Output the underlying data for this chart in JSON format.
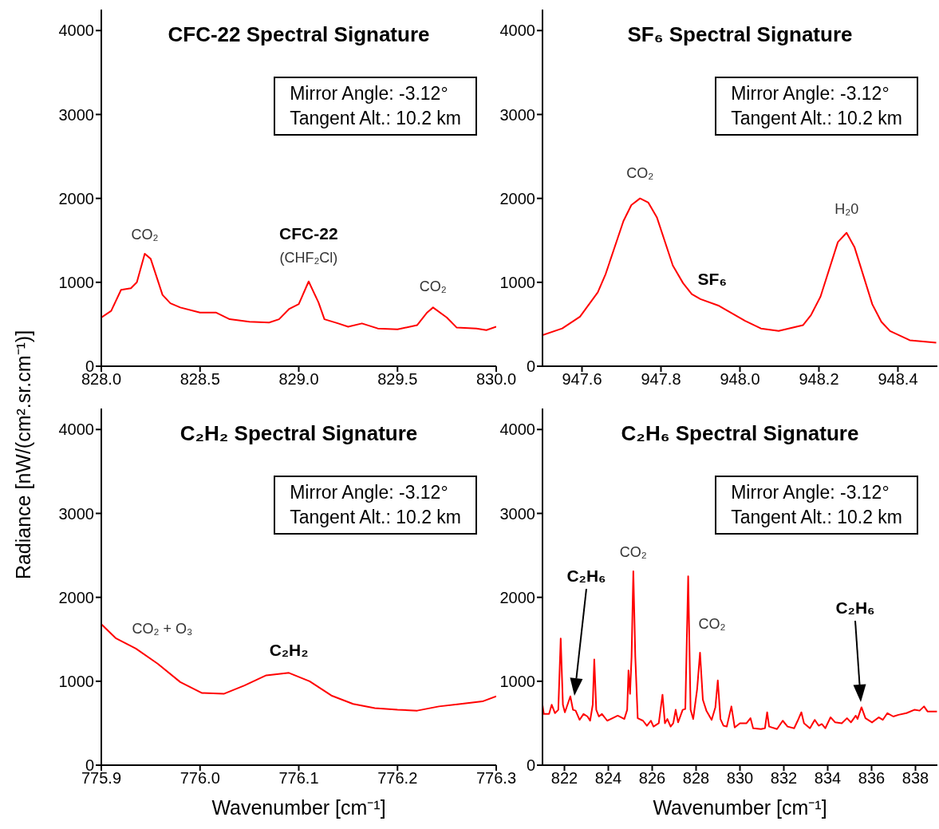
{
  "chart_data": [
    {
      "type": "line",
      "title": "CFC-22 Spectral Signature",
      "ylabel": "Radiance [nW/(cm².sr.cm⁻¹)]",
      "color": "#ff0000",
      "xlim": [
        828,
        830
      ],
      "xticks": [
        {
          "value": 828,
          "label": "828.0"
        },
        {
          "value": 828.5,
          "label": "828.5"
        },
        {
          "value": 829,
          "label": "829.0"
        },
        {
          "value": 829.5,
          "label": "829.5"
        },
        {
          "value": 830,
          "label": "830.0"
        }
      ],
      "ylim": [
        0,
        4250
      ],
      "yticks": [
        0,
        1000,
        2000,
        3000,
        4000
      ],
      "x": [
        828.0,
        828.05,
        828.1,
        828.15,
        828.18,
        828.22,
        828.25,
        828.31,
        828.35,
        828.4,
        828.5,
        828.58,
        828.65,
        828.75,
        828.85,
        828.9,
        828.95,
        829.0,
        829.05,
        829.1,
        829.13,
        829.2,
        829.25,
        829.32,
        829.4,
        829.5,
        829.6,
        829.65,
        829.68,
        829.75,
        829.8,
        829.9,
        829.95,
        830.0
      ],
      "values": [
        580,
        660,
        910,
        930,
        1000,
        1340,
        1280,
        850,
        750,
        700,
        640,
        640,
        560,
        530,
        520,
        560,
        680,
        740,
        1010,
        760,
        560,
        510,
        470,
        510,
        450,
        440,
        490,
        640,
        700,
        580,
        460,
        450,
        430,
        470
      ],
      "annotations": [
        "Mirror Angle: -3.12°",
        "Tangent Alt.: 10.2 km",
        {
          "text": "CO₂",
          "x": 828.22,
          "y": 1340
        },
        {
          "text": "CFC-22",
          "x": 829.05,
          "y": 1010
        },
        {
          "text": "(CHF₂Cl)",
          "x": 829.05,
          "y": 1010
        },
        {
          "text": "CO₂",
          "x": 829.68,
          "y": 700
        }
      ]
    },
    {
      "type": "line",
      "title": "SF₆ Spectral Signature",
      "color": "#ff0000",
      "xlim": [
        947.5,
        948.5
      ],
      "xticks": [
        947.6,
        947.8,
        {
          "value": 948,
          "label": "948.0"
        },
        948.2,
        948.4
      ],
      "ylim": [
        0,
        4250
      ],
      "yticks": [
        0,
        1000,
        2000,
        3000,
        4000
      ],
      "x": [
        947.5,
        947.55,
        947.595,
        947.64,
        947.66,
        947.705,
        947.725,
        947.747,
        947.768,
        947.79,
        947.83,
        947.856,
        947.878,
        947.9,
        947.947,
        948.013,
        948.053,
        948.098,
        948.16,
        948.18,
        948.204,
        948.248,
        948.27,
        948.29,
        948.335,
        948.358,
        948.38,
        948.43,
        948.497
      ],
      "values": [
        370,
        450,
        590,
        880,
        1100,
        1730,
        1920,
        2000,
        1950,
        1770,
        1200,
        990,
        860,
        800,
        720,
        540,
        450,
        420,
        490,
        610,
        830,
        1480,
        1590,
        1420,
        740,
        530,
        420,
        310,
        280
      ],
      "annotations": [
        "Mirror Angle: -3.12°",
        "Tangent Alt.: 10.2 km",
        {
          "text": "CO₂",
          "x": 947.747,
          "y": 2000
        },
        {
          "text": "SF₆",
          "x": 947.94,
          "y": 720
        },
        {
          "text": "H₂0",
          "x": 948.27,
          "y": 1590
        }
      ]
    },
    {
      "type": "line",
      "title": "C₂H₂ Spectral Signature",
      "xlabel": "Wavenumber [cm⁻¹]",
      "color": "#ff0000",
      "xlim": [
        775.9,
        776.3
      ],
      "xticks": [
        775.9,
        {
          "value": 776,
          "label": "776.0"
        },
        776.1,
        776.2,
        776.3
      ],
      "ylim": [
        0,
        4250
      ],
      "yticks": [
        0,
        1000,
        2000,
        3000,
        4000
      ],
      "x": [
        775.9,
        775.915,
        775.935,
        775.957,
        775.98,
        776.002,
        776.024,
        776.045,
        776.067,
        776.09,
        776.111,
        776.133,
        776.155,
        776.177,
        776.2,
        776.22,
        776.242,
        776.264,
        776.286,
        776.3
      ],
      "values": [
        1680,
        1510,
        1390,
        1210,
        990,
        860,
        850,
        950,
        1070,
        1100,
        1000,
        830,
        730,
        680,
        660,
        650,
        700,
        730,
        760,
        820
      ],
      "annotations": [
        "Mirror Angle: -3.12°",
        "Tangent Alt.: 10.2 km",
        {
          "text": "CO₂ + O₃",
          "x": 775.957,
          "y": 1210
        },
        {
          "text": "C₂H₂",
          "x": 776.09,
          "y": 1100
        }
      ]
    },
    {
      "type": "line",
      "title": "C₂H₆ Spectral Signature",
      "xlabel": "Wavenumber [cm⁻¹]",
      "color": "#ff0000",
      "xlim": [
        821,
        839
      ],
      "xticks": [
        822,
        824,
        826,
        828,
        830,
        832,
        834,
        836,
        838
      ],
      "ylim": [
        0,
        4250
      ],
      "yticks": [
        0,
        1000,
        2000,
        3000,
        4000
      ],
      "x": [
        821.0,
        821.06,
        821.3,
        821.42,
        821.57,
        821.72,
        821.83,
        821.93,
        822.02,
        822.14,
        822.27,
        822.39,
        822.51,
        822.69,
        822.87,
        823.05,
        823.17,
        823.29,
        823.36,
        823.45,
        823.57,
        823.71,
        823.95,
        824.19,
        824.43,
        824.73,
        824.86,
        824.92,
        824.99,
        825.06,
        825.14,
        825.23,
        825.34,
        825.58,
        825.76,
        825.94,
        826.06,
        826.3,
        826.47,
        826.58,
        826.69,
        826.84,
        826.96,
        827.07,
        827.18,
        827.39,
        827.51,
        827.64,
        827.75,
        827.87,
        828.05,
        828.18,
        828.31,
        828.47,
        828.71,
        828.88,
        828.99,
        829.11,
        829.25,
        829.4,
        829.61,
        829.76,
        830.0,
        830.3,
        830.48,
        830.6,
        830.96,
        831.14,
        831.24,
        831.33,
        831.69,
        831.95,
        832.17,
        832.47,
        832.65,
        832.8,
        832.92,
        833.19,
        833.41,
        833.59,
        833.73,
        833.89,
        834.13,
        834.34,
        834.64,
        834.88,
        835.06,
        835.28,
        835.36,
        835.54,
        835.72,
        836.02,
        836.33,
        836.51,
        836.72,
        836.99,
        837.23,
        837.59,
        837.95,
        838.19,
        838.39,
        838.55,
        838.98
      ],
      "values": [
        720,
        610,
        610,
        720,
        620,
        660,
        1510,
        720,
        630,
        720,
        820,
        660,
        650,
        540,
        610,
        580,
        530,
        720,
        1260,
        660,
        580,
        610,
        530,
        560,
        590,
        550,
        660,
        1130,
        850,
        1290,
        2310,
        1290,
        560,
        530,
        470,
        530,
        460,
        500,
        840,
        500,
        550,
        460,
        500,
        660,
        510,
        660,
        670,
        2250,
        660,
        550,
        910,
        1340,
        780,
        650,
        540,
        690,
        1010,
        550,
        470,
        460,
        700,
        450,
        500,
        500,
        560,
        440,
        430,
        440,
        630,
        460,
        430,
        530,
        460,
        440,
        540,
        630,
        500,
        440,
        540,
        470,
        490,
        440,
        570,
        510,
        500,
        560,
        510,
        590,
        550,
        690,
        560,
        510,
        570,
        540,
        620,
        580,
        600,
        620,
        660,
        650,
        700,
        640,
        640
      ],
      "annotations": [
        "Mirror Angle: -3.12°",
        "Tangent Alt.: 10.2 km",
        "C₂H₆",
        "C₂H₆",
        {
          "text": "CO₂",
          "x": 825.14,
          "y": 2310
        },
        {
          "text": "CO₂",
          "x": 828.18,
          "y": 1340
        }
      ]
    }
  ]
}
